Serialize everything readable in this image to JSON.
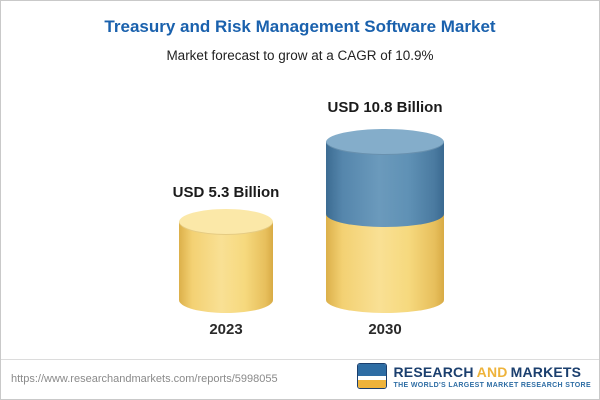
{
  "header": {
    "title": "Treasury and Risk Management Software Market",
    "subtitle": "Market forecast to grow at a CAGR of 10.9%"
  },
  "chart_data": {
    "type": "bar",
    "bar_style": "3d-cylinder",
    "categories": [
      "2023",
      "2030"
    ],
    "values": [
      5.3,
      10.8
    ],
    "value_labels": [
      "USD 5.3 Billion",
      "USD 10.8 Billion"
    ],
    "unit": "USD Billion",
    "title": "Treasury and Risk Management Software Market",
    "subtitle": "Market forecast to grow at a CAGR of 10.9%",
    "cagr_percent": 10.9,
    "legend_position": "none",
    "grid": false,
    "colors": {
      "base_segment_yellow": "#f6d97e",
      "growth_segment_blue": "#5f91b5",
      "title_blue": "#1a61ad"
    }
  },
  "footer": {
    "url": "https://www.researchandmarkets.com/reports/5998055",
    "logo": {
      "word1": "RESEARCH",
      "word2": "AND",
      "word3": "MARKETS",
      "tagline": "THE WORLD'S LARGEST MARKET RESEARCH STORE"
    }
  }
}
